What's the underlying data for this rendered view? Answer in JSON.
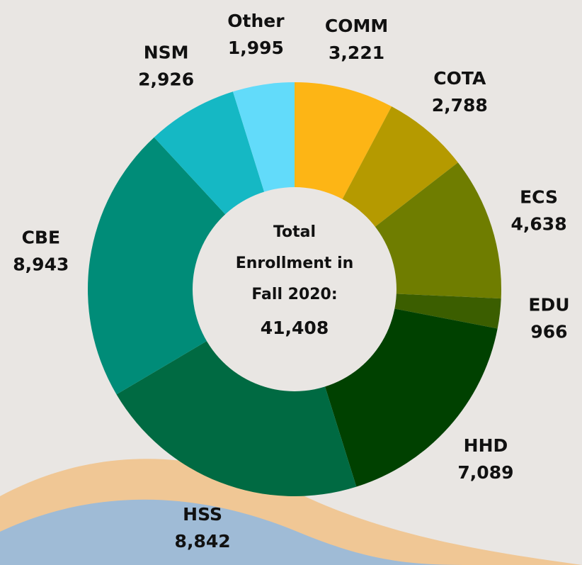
{
  "chart_data": {
    "type": "donut",
    "categories": [
      "COMM",
      "COTA",
      "ECS",
      "EDU",
      "HHD",
      "HSS",
      "CBE",
      "NSM",
      "Other"
    ],
    "values": [
      3221,
      2788,
      4638,
      966,
      7089,
      8842,
      8943,
      2926,
      1995
    ],
    "value_labels": [
      "3,221",
      "2,788",
      "4,638",
      "966",
      "7,089",
      "8,842",
      "8,943",
      "2,926",
      "1,995"
    ],
    "colors": [
      "#fdb515",
      "#b59a00",
      "#6f7d00",
      "#3b5e00",
      "#004100",
      "#006a42",
      "#008c78",
      "#15b8c4",
      "#62dbfa"
    ],
    "center_lines": [
      "Total",
      "Enrollment in",
      "Fall 2020:"
    ],
    "center_value": "41,408"
  }
}
